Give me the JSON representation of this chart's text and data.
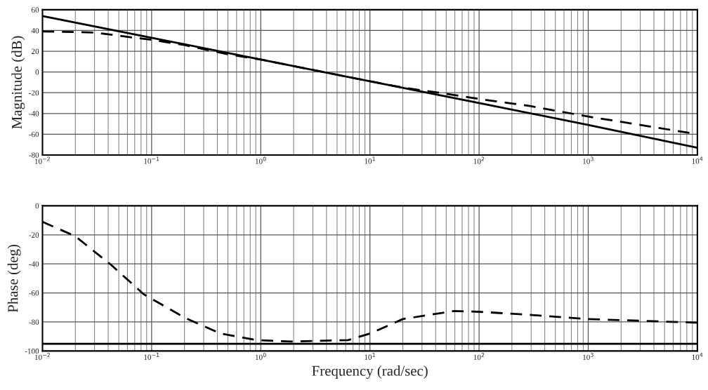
{
  "chart_data": [
    {
      "type": "line",
      "ylabel": "Magnitude (dB)",
      "log": "x",
      "grid": true,
      "legend": false,
      "xlim": [
        0.01,
        10000
      ],
      "xticks": [
        {
          "value": 0.01,
          "label": "10$^{−2}$"
        },
        {
          "value": 0.1,
          "label": "10$^{−1}$"
        },
        {
          "value": 1,
          "label": "10$^{0}$"
        },
        {
          "value": 10,
          "label": "10$^{1}$"
        },
        {
          "value": 100,
          "label": "10$^{2}$"
        },
        {
          "value": 1000,
          "label": "10$^{3}$"
        },
        {
          "value": 10000,
          "label": "10$^{4}$"
        }
      ],
      "ylim": [
        -80,
        60
      ],
      "yticks": [
        -80,
        -60,
        -40,
        -20,
        0,
        20,
        40,
        60
      ],
      "series": [
        {
          "color": "#000000",
          "line_style": "solid",
          "x": [
            0.01,
            0.1,
            1,
            10,
            100,
            1000,
            10000
          ],
          "values": [
            54,
            33,
            12,
            -9,
            -30,
            -51,
            -73
          ]
        },
        {
          "color": "#000000",
          "line_style": "dashed",
          "x": [
            0.01,
            0.02,
            0.03,
            0.05,
            0.07,
            0.1,
            0.2,
            0.5,
            1,
            3,
            10,
            20,
            50,
            100,
            300,
            1000,
            3000,
            10000
          ],
          "values": [
            39,
            38.5,
            38,
            35,
            33,
            31,
            26,
            17,
            12,
            2,
            -9,
            -15,
            -21,
            -26,
            -33,
            -43,
            -51,
            -60
          ]
        }
      ]
    },
    {
      "type": "line",
      "ylabel": "Phase (deg)",
      "xlabel": "Frequency (rad/sec)",
      "log": "x",
      "grid": true,
      "legend": false,
      "xlim": [
        0.01,
        10000
      ],
      "xticks": [
        {
          "value": 0.01,
          "label": "10$^{−2}$"
        },
        {
          "value": 0.1,
          "label": "10$^{−1}$"
        },
        {
          "value": 1,
          "label": "10$^{0}$"
        },
        {
          "value": 10,
          "label": "10$^{1}$"
        },
        {
          "value": 100,
          "label": "10$^{2}$"
        },
        {
          "value": 1000,
          "label": "10$^{3}$"
        },
        {
          "value": 10000,
          "label": "10$^{4}$"
        }
      ],
      "ylim": [
        -100,
        0
      ],
      "yticks": [
        -100,
        -80,
        -60,
        -40,
        -20,
        0
      ],
      "series": [
        {
          "color": "#000000",
          "line_style": "solid",
          "x": [
            0.01,
            10000
          ],
          "values": [
            -95,
            -95
          ]
        },
        {
          "color": "#000000",
          "line_style": "dashed",
          "x": [
            0.01,
            0.02,
            0.043,
            0.085,
            0.2,
            0.43,
            0.92,
            1.9,
            6.3,
            10,
            20,
            59,
            100,
            280,
            1000,
            10000
          ],
          "values": [
            -11,
            -21,
            -41,
            -61,
            -77,
            -88,
            -92.5,
            -93.5,
            -92.5,
            -88,
            -78,
            -72.5,
            -73,
            -75,
            -78,
            -80.5
          ]
        }
      ]
    }
  ]
}
